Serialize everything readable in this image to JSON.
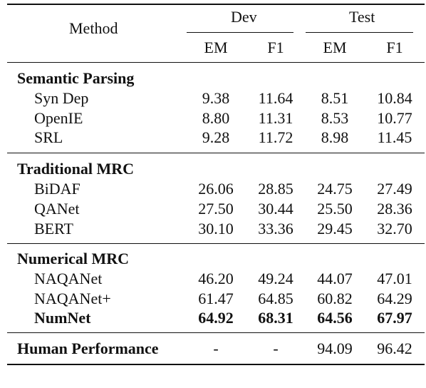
{
  "header": {
    "method": "Method",
    "dev": "Dev",
    "test": "Test",
    "em": "EM",
    "f1": "F1"
  },
  "groups": [
    {
      "title": "Semantic Parsing",
      "rows": [
        {
          "method": "Syn Dep",
          "dev_em": "9.38",
          "dev_f1": "11.64",
          "test_em": "8.51",
          "test_f1": "10.84"
        },
        {
          "method": "OpenIE",
          "dev_em": "8.80",
          "dev_f1": "11.31",
          "test_em": "8.53",
          "test_f1": "10.77"
        },
        {
          "method": "SRL",
          "dev_em": "9.28",
          "dev_f1": "11.72",
          "test_em": "8.98",
          "test_f1": "11.45"
        }
      ]
    },
    {
      "title": "Traditional MRC",
      "rows": [
        {
          "method": "BiDAF",
          "dev_em": "26.06",
          "dev_f1": "28.85",
          "test_em": "24.75",
          "test_f1": "27.49"
        },
        {
          "method": "QANet",
          "dev_em": "27.50",
          "dev_f1": "30.44",
          "test_em": "25.50",
          "test_f1": "28.36"
        },
        {
          "method": "BERT",
          "dev_em": "30.10",
          "dev_f1": "33.36",
          "test_em": "29.45",
          "test_f1": "32.70"
        }
      ]
    },
    {
      "title": "Numerical MRC",
      "rows": [
        {
          "method": "NAQANet",
          "dev_em": "46.20",
          "dev_f1": "49.24",
          "test_em": "44.07",
          "test_f1": "47.01"
        },
        {
          "method": "NAQANet+",
          "dev_em": "61.47",
          "dev_f1": "64.85",
          "test_em": "60.82",
          "test_f1": "64.29"
        },
        {
          "method": "NumNet",
          "dev_em": "64.92",
          "dev_f1": "68.31",
          "test_em": "64.56",
          "test_f1": "67.97"
        }
      ]
    }
  ],
  "human": {
    "method": "Human Performance",
    "dev_em": "-",
    "dev_f1": "-",
    "test_em": "94.09",
    "test_f1": "96.42"
  }
}
